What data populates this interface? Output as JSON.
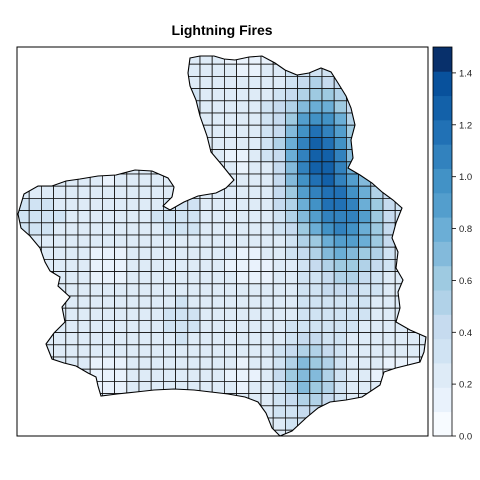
{
  "title": "Lightning Fires",
  "legend": {
    "ticks": [
      {
        "value": 0.0,
        "label": "0.0"
      },
      {
        "value": 0.2,
        "label": "0.2"
      },
      {
        "value": 0.4,
        "label": "0.4"
      },
      {
        "value": 0.6,
        "label": "0.6"
      },
      {
        "value": 0.8,
        "label": "0.8"
      },
      {
        "value": 1.0,
        "label": "1.0"
      },
      {
        "value": 1.2,
        "label": "1.2"
      },
      {
        "value": 1.4,
        "label": "1.4"
      }
    ],
    "range": [
      0.0,
      1.5
    ],
    "step": 0.1,
    "colors": [
      "#f7fbff",
      "#e9f2fc",
      "#deebf7",
      "#d0e3f3",
      "#c6dbef",
      "#b1d2e8",
      "#9ecae1",
      "#83badb",
      "#6baed6",
      "#539ecd",
      "#4292c6",
      "#3282be",
      "#2171b5",
      "#1361a9",
      "#08519c",
      "#08306b"
    ]
  },
  "chart_data": {
    "type": "heatmap",
    "title": "Lightning Fires",
    "xlabel": "",
    "ylabel": "",
    "value_range": [
      0.0,
      1.5
    ],
    "legend_position": "right",
    "hotspots": [
      {
        "region": "northeast",
        "peak_value": 1.3
      },
      {
        "region": "east",
        "peak_value": 1.0
      },
      {
        "region": "south-central",
        "peak_value": 0.8
      }
    ],
    "typical_value": 0.25
  }
}
